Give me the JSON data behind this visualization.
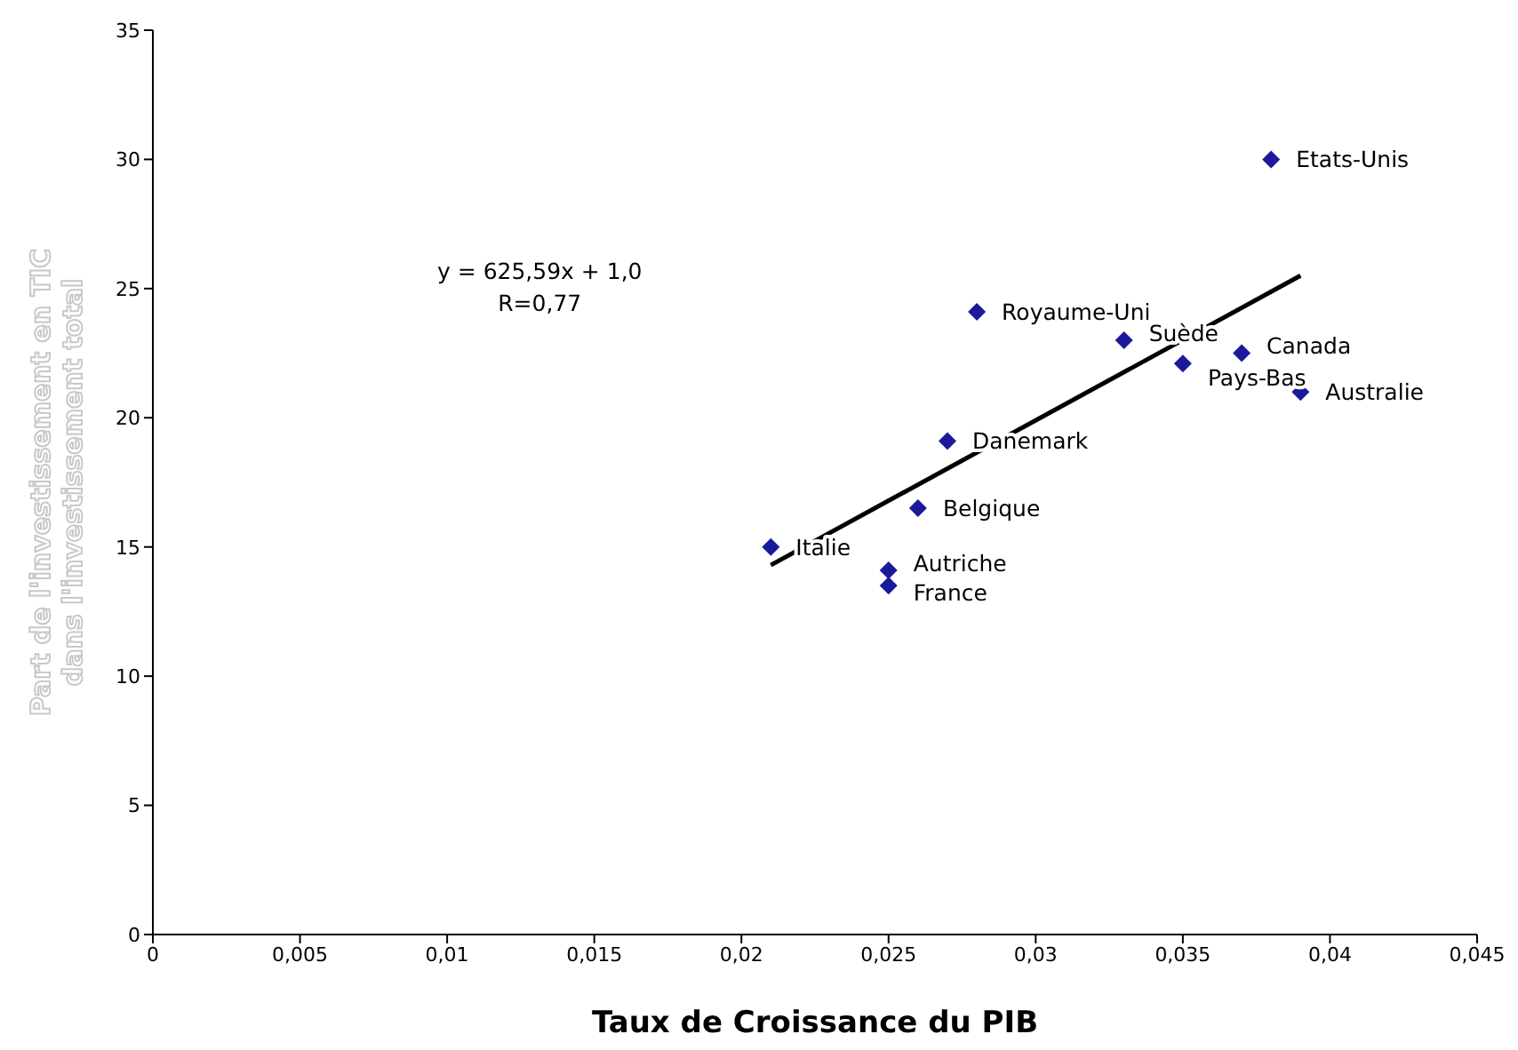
{
  "chart_data": {
    "type": "scatter",
    "xlabel": "Taux de Croissance du PIB",
    "ylabel": "Part de l'investissement en TIC dans l'investissement total",
    "marker": "diamond",
    "grid": false,
    "legend": false,
    "xlim": [
      0,
      0.045
    ],
    "xticks": [
      {
        "value": 0,
        "label": "0"
      },
      {
        "value": 0.005,
        "label": "0,005"
      },
      {
        "value": 0.01,
        "label": "0,01"
      },
      {
        "value": 0.015,
        "label": "0,015"
      },
      {
        "value": 0.02,
        "label": "0,02"
      },
      {
        "value": 0.025,
        "label": "0,025"
      },
      {
        "value": 0.03,
        "label": "0,03"
      },
      {
        "value": 0.035,
        "label": "0,035"
      },
      {
        "value": 0.04,
        "label": "0,04"
      },
      {
        "value": 0.045,
        "label": "0,045"
      }
    ],
    "ylim": [
      0,
      35
    ],
    "yticks": [
      0,
      5,
      10,
      15,
      20,
      25,
      30,
      35
    ],
    "series": [
      {
        "type": "scatter",
        "color": "#1a1a9a",
        "x": [
          0.021,
          0.025,
          0.025,
          0.026,
          0.027,
          0.028,
          0.033,
          0.035,
          0.037,
          0.039,
          0.038
        ],
        "values": [
          15,
          14.1,
          13.5,
          16.5,
          19.1,
          24.1,
          23,
          22.1,
          22.5,
          21,
          30
        ]
      },
      {
        "type": "line",
        "marker": "none",
        "color": "#000000",
        "x": [
          0.021,
          0.039
        ],
        "values": [
          14.3,
          25.5
        ]
      }
    ],
    "annotations": [
      {
        "text": "Italie",
        "x": 0.021,
        "y": 15
      },
      {
        "text": "Autriche",
        "x": 0.025,
        "y": 14.1
      },
      {
        "text": "France",
        "x": 0.025,
        "y": 13.5
      },
      {
        "text": "Belgique",
        "x": 0.026,
        "y": 16.5
      },
      {
        "text": "Danemark",
        "x": 0.027,
        "y": 19.1
      },
      {
        "text": "Royaume-Uni",
        "x": 0.028,
        "y": 24.1
      },
      {
        "text": "Suède",
        "x": 0.033,
        "y": 23
      },
      {
        "text": "Pays-Bas",
        "x": 0.035,
        "y": 22.1
      },
      {
        "text": "Canada",
        "x": 0.037,
        "y": 22.5
      },
      {
        "text": "Australie",
        "x": 0.039,
        "y": 21
      },
      {
        "text": "Etats-Unis",
        "x": 0.038,
        "y": 30
      },
      "y = 625,59x + 1,0",
      "R=0,77"
    ]
  }
}
